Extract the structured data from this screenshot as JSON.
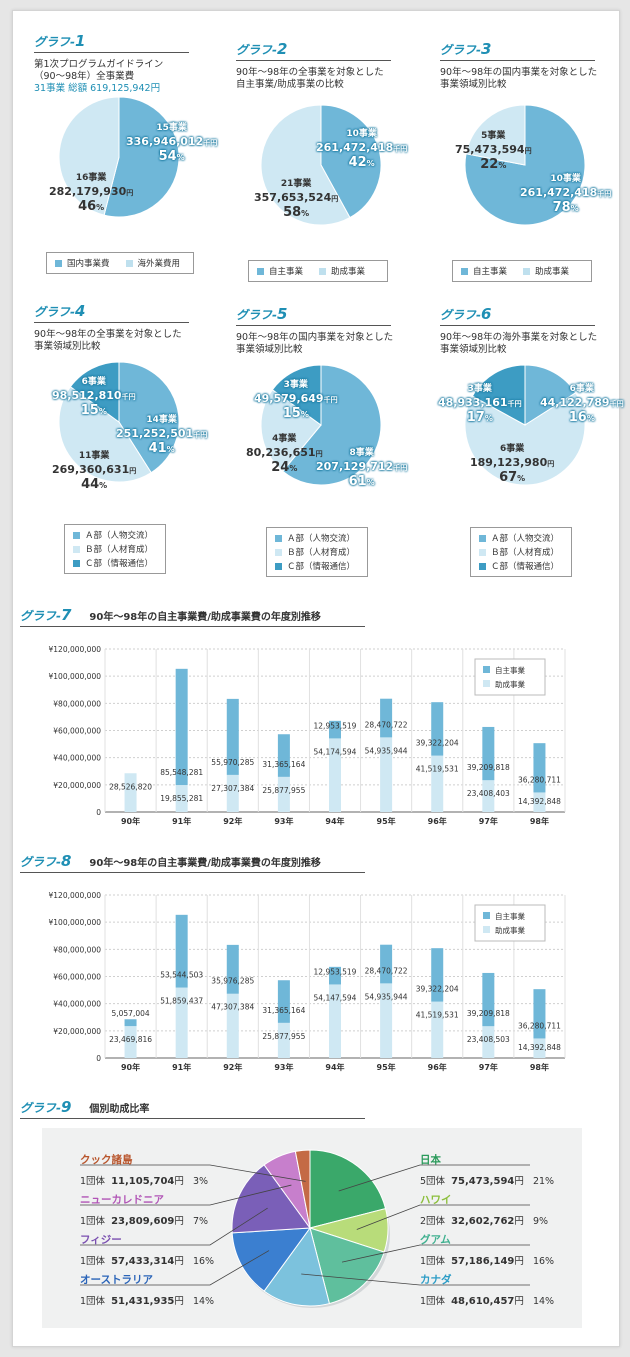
{
  "charts": [
    {
      "label": "グラフ-",
      "num": "1",
      "desc1": "第1次プログラムガイドライン",
      "desc2": "（90〜98年）全事業費",
      "desc3": "31事業 総額 619,125,942円",
      "slices": [
        {
          "count": "15事業",
          "amount": "336,946,012",
          "unit": "千円",
          "pct": "54",
          "value": 54,
          "color": "#6fb7d8"
        },
        {
          "count": "16事業",
          "amount": "282,179,930",
          "unit": "円",
          "pct": "46",
          "value": 46,
          "color": "#cfe8f3"
        }
      ],
      "legend": [
        {
          "text": "国内事業費",
          "color": "#6fb7d8"
        },
        {
          "text": "海外業費用",
          "color": "#bfe0ee"
        }
      ]
    },
    {
      "label": "グラフ-",
      "num": "2",
      "desc1": "90年〜98年の全事業を対象とした",
      "desc2": "自主事業/助成事業の比較",
      "slices": [
        {
          "count": "10事業",
          "amount": "261,472,418",
          "unit": "千円",
          "pct": "42",
          "value": 42,
          "color": "#6fb7d8"
        },
        {
          "count": "21事業",
          "amount": "357,653,524",
          "unit": "円",
          "pct": "58",
          "value": 58,
          "color": "#cfe8f3"
        }
      ],
      "legend": [
        {
          "text": "自主事業",
          "color": "#6fb7d8"
        },
        {
          "text": "助成事業",
          "color": "#bfe0ee"
        }
      ]
    },
    {
      "label": "グラフ-",
      "num": "3",
      "desc1": "90年〜98年の国内事業を対象とした",
      "desc2": "事業領域別比較",
      "slices": [
        {
          "count": "10事業",
          "amount": "261,472,418",
          "unit": "千円",
          "pct": "78",
          "value": 78,
          "color": "#6fb7d8"
        },
        {
          "count": "5事業",
          "amount": "75,473,594",
          "unit": "円",
          "pct": "22",
          "value": 22,
          "color": "#cfe8f3"
        }
      ],
      "legend": [
        {
          "text": "自主事業",
          "color": "#6fb7d8"
        },
        {
          "text": "助成事業",
          "color": "#bfe0ee"
        }
      ]
    },
    {
      "label": "グラフ-",
      "num": "4",
      "desc1": "90年〜98年の全事業を対象とした",
      "desc2": "事業領域別比較",
      "slices": [
        {
          "count": "14事業",
          "amount": "251,252,501",
          "unit": "千円",
          "pct": "41",
          "value": 41,
          "color": "#6fb7d8"
        },
        {
          "count": "11事業",
          "amount": "269,360,631",
          "unit": "円",
          "pct": "44",
          "value": 44,
          "color": "#cfe8f3"
        },
        {
          "count": "6事業",
          "amount": "98,512,810",
          "unit": "千円",
          "pct": "15",
          "value": 15,
          "color": "#3d9cc3"
        }
      ],
      "legend": [
        {
          "text": "Ａ部（人物交流）",
          "color": "#6fb7d8"
        },
        {
          "text": "Ｂ部（人材育成）",
          "color": "#cfe8f3"
        },
        {
          "text": "Ｃ部（情報通信）",
          "color": "#3d9cc3"
        }
      ]
    },
    {
      "label": "グラフ-",
      "num": "5",
      "desc1": "90年〜98年の国内事業を対象とした",
      "desc2": "事業領域別比較",
      "slices": [
        {
          "count": "8事業",
          "amount": "207,129,712",
          "unit": "千円",
          "pct": "61",
          "value": 61,
          "color": "#6fb7d8"
        },
        {
          "count": "4事業",
          "amount": "80,236,651",
          "unit": "円",
          "pct": "24",
          "value": 24,
          "color": "#cfe8f3"
        },
        {
          "count": "3事業",
          "amount": "49,579,649",
          "unit": "千円",
          "pct": "15",
          "value": 15,
          "color": "#3d9cc3"
        }
      ],
      "legend": [
        {
          "text": "Ａ部（人物交流）",
          "color": "#6fb7d8"
        },
        {
          "text": "Ｂ部（人材育成）",
          "color": "#cfe8f3"
        },
        {
          "text": "Ｃ部（情報通信）",
          "color": "#3d9cc3"
        }
      ]
    },
    {
      "label": "グラフ-",
      "num": "6",
      "desc1": "90年〜98年の海外事業を対象とした",
      "desc2": "事業領域別比較",
      "slices": [
        {
          "count": "6事業",
          "amount": "44,122,789",
          "unit": "千円",
          "pct": "16",
          "value": 16,
          "color": "#6fb7d8"
        },
        {
          "count": "6事業",
          "amount": "189,123,980",
          "unit": "円",
          "pct": "67",
          "value": 67,
          "color": "#cfe8f3"
        },
        {
          "count": "3事業",
          "amount": "48,933,161",
          "unit": "千円",
          "pct": "17",
          "value": 17,
          "color": "#3d9cc3"
        }
      ],
      "legend": [
        {
          "text": "Ａ部（人物交流）",
          "color": "#6fb7d8"
        },
        {
          "text": "Ｂ部（人材育成）",
          "color": "#cfe8f3"
        },
        {
          "text": "Ｃ部（情報通信）",
          "color": "#3d9cc3"
        }
      ]
    }
  ],
  "bar_charts": [
    {
      "label": "グラフ-",
      "num": "7",
      "subtitle": "90年〜98年の自主事業費/助成事業費の年度別推移",
      "yticks": [
        "¥120,000,000",
        "¥100,000,000",
        "¥80,000,000",
        "¥60,000,000",
        "¥40,000,000",
        "¥20,000,000",
        "0"
      ],
      "years": [
        "90年",
        "91年",
        "92年",
        "93年",
        "94年",
        "95年",
        "96年",
        "97年",
        "98年"
      ],
      "legend": [
        {
          "text": "自主事業",
          "color": "#6fb7d8"
        },
        {
          "text": "助成事業",
          "color": "#cfe8f3"
        }
      ],
      "bottom": [
        28526820,
        19855281,
        27307384,
        25877955,
        54174594,
        54935944,
        41519531,
        23408403,
        14392848
      ],
      "top": [
        0,
        85548281,
        55970285,
        31365164,
        12953519,
        28470722,
        39322204,
        39209818,
        36280711
      ],
      "bottom_labels": [
        "28,526,820",
        "19,855,281",
        "27,307,384",
        "25,877,955",
        "54,174,594",
        "54,935,944",
        "41,519,531",
        "23,408,403",
        "14,392,848"
      ],
      "top_labels": [
        "",
        "85,548,281",
        "55,970,285",
        "31,365,164",
        "12,953,519",
        "28,470,722",
        "39,322,204",
        "39,209,818",
        "36,280,711"
      ]
    },
    {
      "label": "グラフ-",
      "num": "8",
      "subtitle": "90年〜98年の自主事業費/助成事業費の年度別推移",
      "yticks": [
        "¥120,000,000",
        "¥100,000,000",
        "¥80,000,000",
        "¥60,000,000",
        "¥40,000,000",
        "¥20,000,000",
        "0"
      ],
      "years": [
        "90年",
        "91年",
        "92年",
        "93年",
        "94年",
        "95年",
        "96年",
        "97年",
        "98年"
      ],
      "legend": [
        {
          "text": "自主事業",
          "color": "#6fb7d8"
        },
        {
          "text": "助成事業",
          "color": "#cfe8f3"
        }
      ],
      "bottom": [
        23469816,
        51859437,
        47307384,
        25877955,
        54147594,
        54935944,
        41519531,
        23408503,
        14392848
      ],
      "top": [
        5057004,
        53544503,
        35976285,
        31365164,
        12953519,
        28470722,
        39322204,
        39209818,
        36280711
      ],
      "bottom_labels": [
        "23,469,816",
        "51,859,437",
        "47,307,384",
        "25,877,955",
        "54,147,594",
        "54,935,944",
        "41,519,531",
        "23,408,503",
        "14,392,848"
      ],
      "top_labels": [
        "5,057,004",
        "53,544,503",
        "35,976,285",
        "31,365,164",
        "12,953,519",
        "28,470,722",
        "39,322,204",
        "39,209,818",
        "36,280,711"
      ]
    }
  ],
  "chart9": {
    "label": "グラフ-",
    "num": "9",
    "subtitle": "個別助成比率",
    "countries": [
      {
        "name": "日本",
        "detail": "5団体",
        "amount": "75,473,594",
        "unit": "円",
        "pct": "21%",
        "value": 21,
        "color": "#3aa86a",
        "name_color": "#2a9a5a"
      },
      {
        "name": "ハワイ",
        "detail": "2団体",
        "amount": "32,602,762",
        "unit": "円",
        "pct": "9%",
        "value": 9,
        "color": "#b8dc7a",
        "name_color": "#8cbf3c"
      },
      {
        "name": "グアム",
        "detail": "1団体",
        "amount": "57,186,149",
        "unit": "円",
        "pct": "16%",
        "value": 16,
        "color": "#5fbf9d",
        "name_color": "#3fb08f"
      },
      {
        "name": "カナダ",
        "detail": "1団体",
        "amount": "48,610,457",
        "unit": "円",
        "pct": "14%",
        "value": 14,
        "color": "#7cc2dd",
        "name_color": "#2b9cc6"
      },
      {
        "name": "オーストラリア",
        "detail": "1団体",
        "amount": "51,431,935",
        "unit": "円",
        "pct": "14%",
        "value": 14,
        "color": "#3b7fd0",
        "name_color": "#2a64b8"
      },
      {
        "name": "フィジー",
        "detail": "1団体",
        "amount": "57,433,314",
        "unit": "円",
        "pct": "16%",
        "value": 16,
        "color": "#7a5fb8",
        "name_color": "#7a4fb0"
      },
      {
        "name": "ニューカレドニア",
        "detail": "1団体",
        "amount": "23,809,609",
        "unit": "円",
        "pct": "7%",
        "value": 7,
        "color": "#c77fcc",
        "name_color": "#b155b6"
      },
      {
        "name": "クック諸島",
        "detail": "1団体",
        "amount": "11,105,704",
        "unit": "円",
        "pct": "3%",
        "value": 3,
        "color": "#c46a45",
        "name_color": "#b8552c"
      }
    ]
  }
}
